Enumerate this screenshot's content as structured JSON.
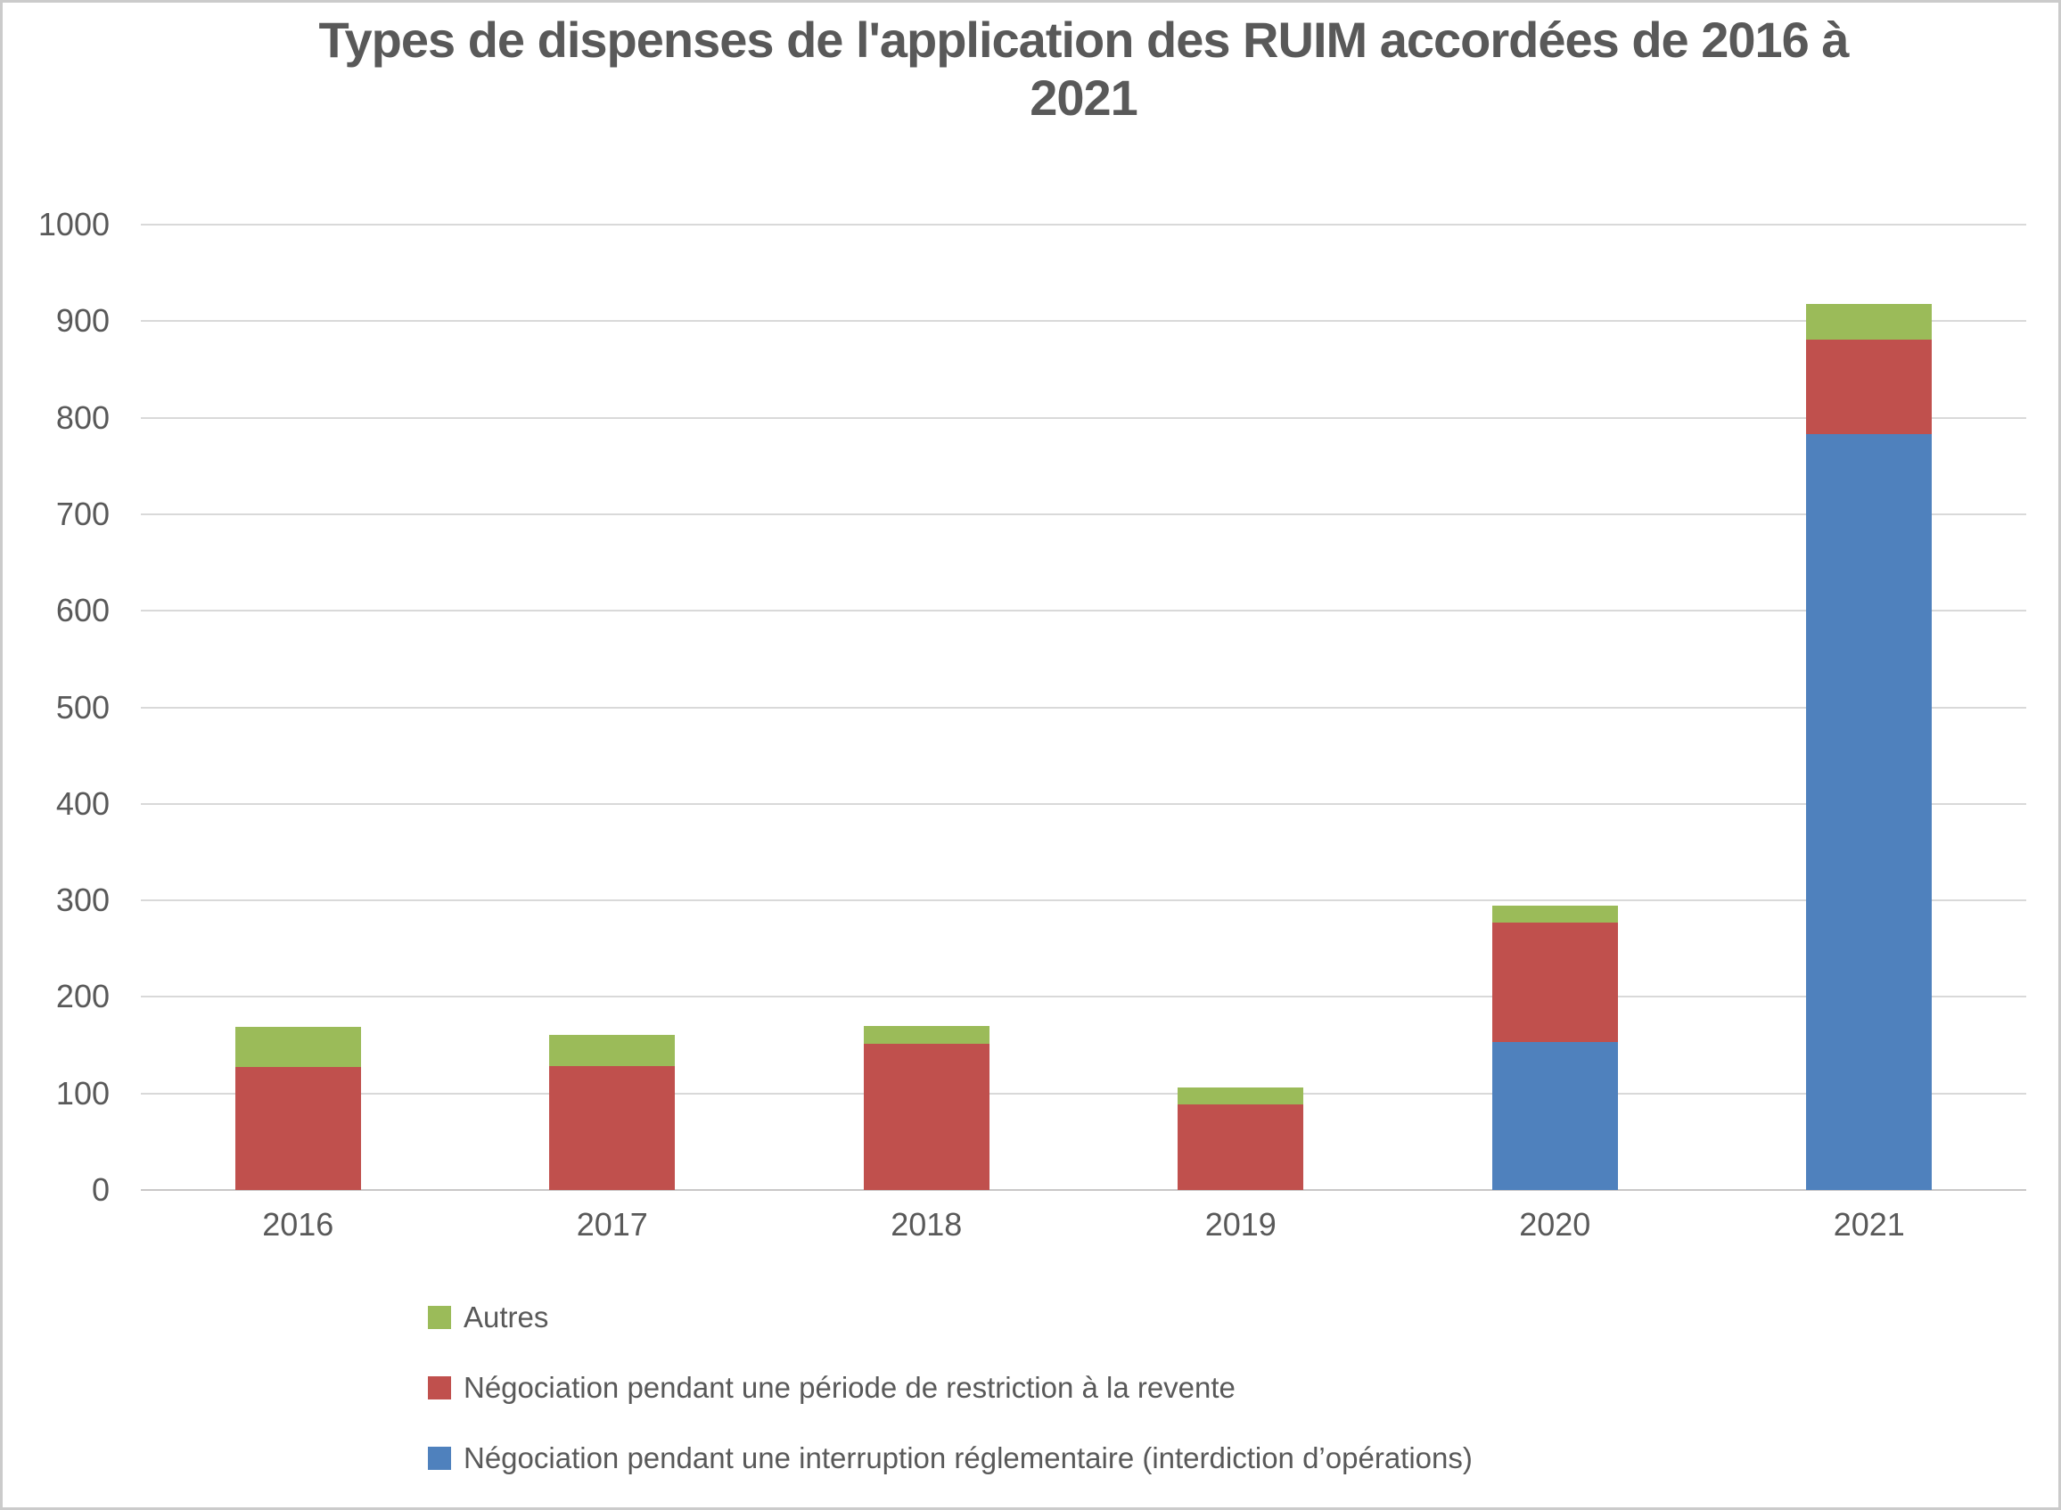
{
  "chart_data": {
    "type": "bar",
    "variant": "stacked-vertical",
    "title": "Types de dispenses de l'application des RUIM accordées de 2016 à 2021",
    "categories": [
      "2016",
      "2017",
      "2018",
      "2019",
      "2020",
      "2021"
    ],
    "series": [
      {
        "name": "Négociation pendant une interruption réglementaire (interdiction d’opérations)",
        "color": "#4F81BD",
        "values": [
          0,
          0,
          0,
          0,
          153,
          783
        ]
      },
      {
        "name": "Négociation pendant une période de restriction à la revente",
        "color": "#C0504D",
        "values": [
          127,
          128,
          151,
          89,
          124,
          98
        ]
      },
      {
        "name": "Autres",
        "color": "#9BBB59",
        "values": [
          42,
          33,
          19,
          17,
          18,
          37
        ]
      }
    ],
    "totals": [
      169,
      161,
      170,
      106,
      295,
      918
    ],
    "xlabel": "",
    "ylabel": "",
    "ylim": [
      0,
      1000
    ],
    "ytick_step": 100,
    "yticks": [
      1000,
      900,
      800,
      700,
      600,
      500,
      400,
      300,
      200,
      100,
      0
    ],
    "grid": "horizontal",
    "gridline_color": "#D9D9D9",
    "axis_line_color": "#C9C7C7",
    "text_color": "#595959",
    "legend_position": "bottom-left",
    "legend_order_top_to_bottom": [
      "Autres",
      "Négociation pendant une période de restriction à la revente",
      "Négociation pendant une interruption réglementaire (interdiction d’opérations)"
    ]
  }
}
